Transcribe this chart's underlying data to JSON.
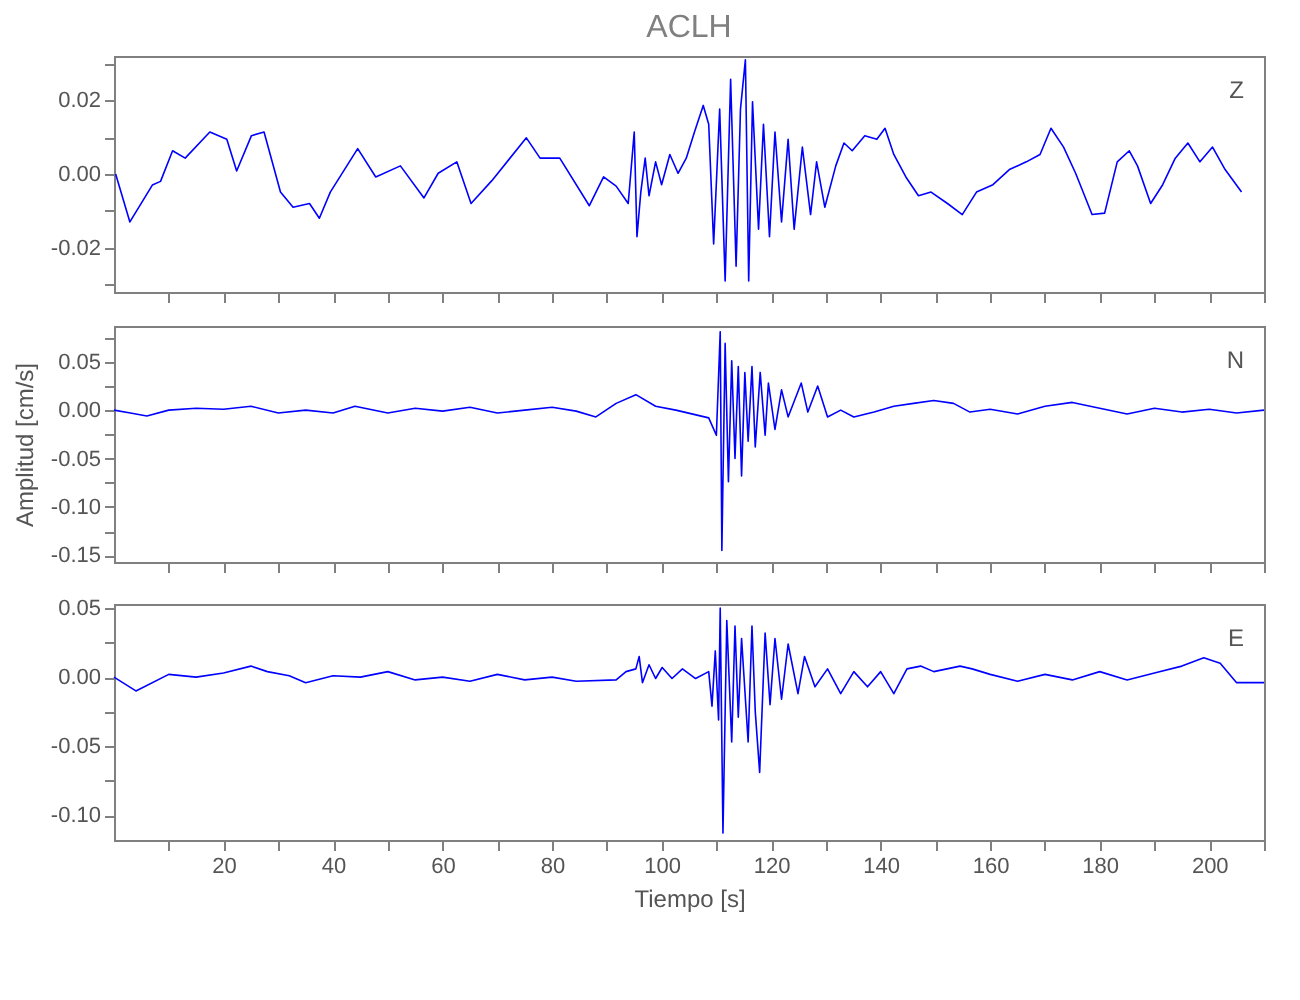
{
  "chart_data": [
    {
      "type": "line",
      "title": "ACLH",
      "annotations": [
        "Z"
      ],
      "tick_labels": "y",
      "xlim": [
        0,
        210
      ],
      "xticks": [
        {
          "value": 10,
          "label": null
        },
        {
          "value": 20,
          "label": null
        },
        {
          "value": 30,
          "label": null
        },
        {
          "value": 40,
          "label": null
        },
        {
          "value": 50,
          "label": null
        },
        {
          "value": 60,
          "label": null
        },
        {
          "value": 70,
          "label": null
        },
        {
          "value": 80,
          "label": null
        },
        {
          "value": 90,
          "label": null
        },
        {
          "value": 100,
          "label": null
        },
        {
          "value": 110,
          "label": null
        },
        {
          "value": 120,
          "label": null
        },
        {
          "value": 130,
          "label": null
        },
        {
          "value": 140,
          "label": null
        },
        {
          "value": 150,
          "label": null
        },
        {
          "value": 160,
          "label": null
        },
        {
          "value": 170,
          "label": null
        },
        {
          "value": 180,
          "label": null
        },
        {
          "value": 190,
          "label": null
        },
        {
          "value": 200,
          "label": null
        },
        {
          "value": 210,
          "label": null
        }
      ],
      "ylim": [
        -0.032,
        0.032
      ],
      "yticks": [
        {
          "value": -0.03,
          "label": null
        },
        {
          "value": -0.02,
          "label": "-0.02"
        },
        {
          "value": -0.01,
          "label": null
        },
        {
          "value": 0,
          "label": "0.00"
        },
        {
          "value": 0.01,
          "label": null
        },
        {
          "value": 0.02,
          "label": "0.02"
        },
        {
          "value": 0.03,
          "label": null
        }
      ],
      "series": [
        {
          "color": "#0000ff",
          "x": [
            0.3,
            2.9,
            7,
            8.5,
            10.7,
            13,
            17.5,
            20.6,
            22.4,
            25.1,
            27.4,
            30.4,
            32.7,
            35.7,
            37.5,
            39.5,
            44.5,
            47.8,
            52.3,
            56.6,
            59.2,
            62.6,
            65.2,
            69,
            75.3,
            77.8,
            81.4,
            86.8,
            89.4,
            91.7,
            93.9,
            95,
            95.5,
            96.2,
            97,
            97.7,
            98.9,
            100,
            101.5,
            103,
            104.5,
            106,
            107.6,
            108.6,
            109.5,
            110.6,
            111.6,
            112.6,
            113.6,
            114.4,
            115.3,
            115.9,
            116.6,
            117.7,
            118.6,
            119.7,
            120.7,
            121.9,
            123.1,
            124.2,
            125.7,
            127.2,
            128.3,
            129.8,
            131.8,
            133.3,
            134.8,
            137.1,
            139.3,
            140.8,
            142.4,
            144.6,
            146.9,
            149.2,
            152.2,
            154.9,
            157.5,
            160.5,
            163.5,
            166.6,
            169.1,
            171.1,
            173.4,
            175.6,
            178.6,
            180.9,
            183.2,
            185.4,
            186.9,
            189.3,
            191.5,
            193.8,
            196.1,
            198.3,
            200.6,
            202.9,
            205.9
          ],
          "values": [
            0,
            -0.013,
            -0.003,
            -0.002,
            0.0063,
            0.0043,
            0.0114,
            0.0094,
            0.0008,
            0.0104,
            0.0114,
            -0.0049,
            -0.009,
            -0.008,
            -0.012,
            -0.0049,
            0.0069,
            -0.0008,
            0.0022,
            -0.0065,
            0.0002,
            0.0033,
            -0.008,
            -0.0018,
            0.0098,
            0.0043,
            0.0043,
            -0.0086,
            -0.0008,
            -0.0033,
            -0.008,
            0.0114,
            -0.017,
            -0.0049,
            0.0043,
            -0.0059,
            0.0033,
            -0.0029,
            0.0053,
            0.0002,
            0.0043,
            0.0114,
            0.0186,
            0.0135,
            -0.019,
            0.0176,
            -0.029,
            0.0257,
            -0.025,
            0.0176,
            0.031,
            -0.029,
            0.0196,
            -0.015,
            0.0135,
            -0.017,
            0.0114,
            -0.013,
            0.0094,
            -0.015,
            0.0073,
            -0.011,
            0.0033,
            -0.009,
            0.0022,
            0.0084,
            0.0063,
            0.0104,
            0.0094,
            0.0124,
            0.0053,
            -0.0008,
            -0.0059,
            -0.0049,
            -0.008,
            -0.011,
            -0.0049,
            -0.0029,
            0.0012,
            0.0033,
            0.0053,
            0.0124,
            0.0073,
            0.0002,
            -0.011,
            -0.0106,
            0.0033,
            0.0063,
            0.0022,
            -0.008,
            -0.0029,
            0.0043,
            0.0084,
            0.0033,
            0.0073,
            0.0012,
            -0.0049
          ]
        }
      ]
    },
    {
      "type": "line",
      "ylabel": "Amplitud [cm/s]",
      "annotations": [
        "N"
      ],
      "tick_labels": "y",
      "xlim": [
        0,
        210
      ],
      "xticks": [
        {
          "value": 10,
          "label": null
        },
        {
          "value": 20,
          "label": null
        },
        {
          "value": 30,
          "label": null
        },
        {
          "value": 40,
          "label": null
        },
        {
          "value": 50,
          "label": null
        },
        {
          "value": 60,
          "label": null
        },
        {
          "value": 70,
          "label": null
        },
        {
          "value": 80,
          "label": null
        },
        {
          "value": 90,
          "label": null
        },
        {
          "value": 100,
          "label": null
        },
        {
          "value": 110,
          "label": null
        },
        {
          "value": 120,
          "label": null
        },
        {
          "value": 130,
          "label": null
        },
        {
          "value": 140,
          "label": null
        },
        {
          "value": 150,
          "label": null
        },
        {
          "value": 160,
          "label": null
        },
        {
          "value": 170,
          "label": null
        },
        {
          "value": 180,
          "label": null
        },
        {
          "value": 190,
          "label": null
        },
        {
          "value": 200,
          "label": null
        },
        {
          "value": 210,
          "label": null
        }
      ],
      "ylim": [
        -0.157,
        0.087
      ],
      "yticks": [
        {
          "value": -0.15,
          "label": "-0.15"
        },
        {
          "value": -0.125,
          "label": null
        },
        {
          "value": -0.1,
          "label": "-0.10"
        },
        {
          "value": -0.075,
          "label": null
        },
        {
          "value": -0.05,
          "label": "-0.05"
        },
        {
          "value": -0.025,
          "label": null
        },
        {
          "value": 0,
          "label": "0.00"
        },
        {
          "value": 0.025,
          "label": null
        },
        {
          "value": 0.05,
          "label": "0.05"
        },
        {
          "value": 0.075,
          "label": null
        }
      ],
      "series": [
        {
          "color": "#0000ff",
          "x": [
            0,
            3,
            6,
            10,
            15,
            20,
            25,
            30,
            35,
            40,
            44,
            50,
            55,
            60,
            65,
            70,
            75,
            80,
            84.4,
            88,
            91.7,
            95.3,
            98.9,
            102.6,
            108.6,
            110,
            110.7,
            111,
            111.6,
            112.2,
            112.8,
            113.4,
            114,
            114.6,
            115.2,
            115.8,
            116.5,
            117.1,
            118,
            118.9,
            119.5,
            120.7,
            121.9,
            123.1,
            125.5,
            126.7,
            128.5,
            130.3,
            132.7,
            135.1,
            138.8,
            142.4,
            146,
            149.7,
            153.3,
            156.3,
            160,
            165,
            170,
            175,
            180,
            185,
            190,
            195,
            200,
            205,
            210
          ],
          "values": [
            0,
            -0.003,
            -0.006,
            0,
            0.002,
            0.001,
            0.004,
            -0.003,
            0,
            -0.003,
            0.004,
            -0.003,
            0.002,
            -0.001,
            0.003,
            -0.003,
            0,
            0.003,
            -0.001,
            -0.007,
            0.007,
            0.016,
            0.004,
            0,
            -0.008,
            -0.026,
            0.081,
            -0.145,
            0.069,
            -0.074,
            0.051,
            -0.05,
            0.045,
            -0.068,
            0.039,
            -0.032,
            0.045,
            -0.038,
            0.039,
            -0.026,
            0.028,
            -0.02,
            0.021,
            -0.007,
            0.028,
            -0.002,
            0.025,
            -0.007,
            0,
            -0.007,
            -0.002,
            0.004,
            0.007,
            0.01,
            0.007,
            -0.002,
            0.001,
            -0.004,
            0.004,
            0.008,
            0.002,
            -0.004,
            0.002,
            -0.002,
            0.001,
            -0.003,
            0
          ]
        }
      ]
    },
    {
      "type": "line",
      "xlabel": "Tiempo [s]",
      "annotations": [
        "E"
      ],
      "xlim": [
        0,
        210
      ],
      "xticks": [
        {
          "value": 10,
          "label": null
        },
        20,
        {
          "value": 30,
          "label": null
        },
        40,
        {
          "value": 50,
          "label": null
        },
        60,
        {
          "value": 70,
          "label": null
        },
        80,
        {
          "value": 90,
          "label": null
        },
        100,
        {
          "value": 110,
          "label": null
        },
        120,
        {
          "value": 130,
          "label": null
        },
        140,
        {
          "value": 150,
          "label": null
        },
        160,
        {
          "value": 170,
          "label": null
        },
        180,
        {
          "value": 190,
          "label": null
        },
        200,
        {
          "value": 210,
          "label": null
        }
      ],
      "ylim": [
        -0.118,
        0.053
      ],
      "yticks": [
        {
          "value": -0.1,
          "label": "-0.10"
        },
        {
          "value": -0.075,
          "label": null
        },
        {
          "value": -0.05,
          "label": "-0.05"
        },
        {
          "value": -0.025,
          "label": null
        },
        {
          "value": 0,
          "label": "0.00"
        },
        {
          "value": 0.025,
          "label": null
        },
        {
          "value": 0.05,
          "label": "0.05"
        }
      ],
      "series": [
        {
          "color": "#0000ff",
          "x": [
            0,
            4,
            10,
            15,
            20,
            25,
            28,
            32,
            35,
            40,
            45,
            50,
            55,
            60,
            65,
            70,
            75,
            80,
            84.4,
            91.7,
            93.5,
            95.3,
            95.9,
            96.5,
            97.7,
            98.9,
            100.1,
            101.9,
            103.8,
            106.2,
            108.6,
            109.2,
            109.8,
            110.4,
            110.7,
            111.2,
            111.9,
            112.8,
            113.4,
            114,
            114.6,
            115.8,
            116.5,
            117.1,
            117.9,
            118.9,
            119.8,
            120.7,
            121.9,
            123.1,
            124.9,
            126.1,
            128,
            130.3,
            132.7,
            135.1,
            137.6,
            140,
            142.4,
            144.8,
            147.3,
            149.7,
            152.1,
            154.5,
            156.7,
            160,
            165,
            170,
            175,
            180,
            185,
            190,
            195,
            199,
            202,
            205,
            210
          ],
          "values": [
            0,
            -0.01,
            0.002,
            0,
            0.003,
            0.008,
            0.004,
            0.001,
            -0.004,
            0.001,
            0,
            0.004,
            -0.002,
            0,
            -0.003,
            0.002,
            -0.002,
            0,
            -0.003,
            -0.002,
            0.004,
            0.006,
            0.015,
            -0.004,
            0.009,
            -0.001,
            0.007,
            -0.001,
            0.006,
            -0.001,
            0.004,
            -0.021,
            0.019,
            -0.031,
            0.05,
            -0.113,
            0.041,
            -0.047,
            0.037,
            -0.029,
            0.028,
            -0.047,
            0.037,
            -0.025,
            -0.069,
            0.032,
            -0.02,
            0.028,
            -0.016,
            0.024,
            -0.012,
            0.015,
            -0.007,
            0.006,
            -0.012,
            0.004,
            -0.007,
            0.004,
            -0.012,
            0.006,
            0.008,
            0.004,
            0.006,
            0.008,
            0.006,
            0.002,
            -0.003,
            0.002,
            -0.002,
            0.004,
            -0.002,
            0.003,
            0.008,
            0.014,
            0.01,
            -0.004,
            -0.004
          ]
        }
      ]
    }
  ]
}
